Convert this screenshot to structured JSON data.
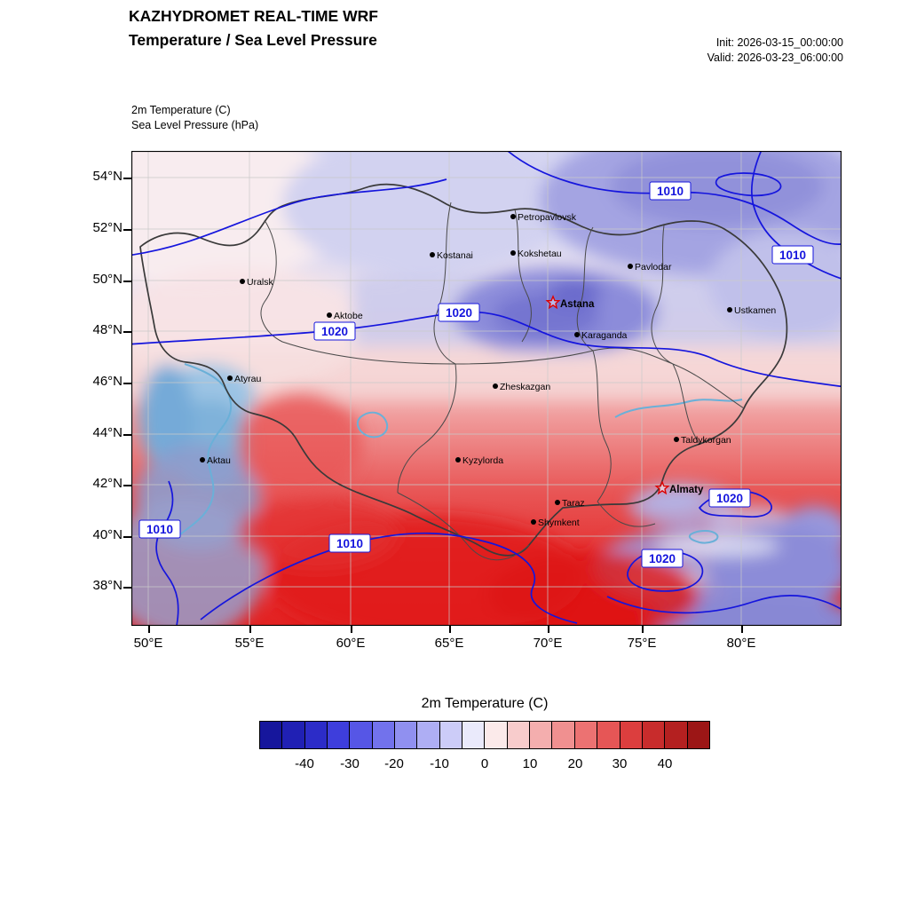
{
  "header": {
    "title_line1": "KAZHYDROMET REAL-TIME WRF",
    "title_line2": "Temperature / Sea Level Pressure",
    "init": "Init: 2026-03-15_00:00:00",
    "valid": "Valid: 2026-03-23_06:00:00"
  },
  "legend": {
    "field1": "2m Temperature   (C)",
    "field2": "Sea Level Pressure   (hPa)"
  },
  "map": {
    "lat_ticks": [
      "54°N",
      "52°N",
      "50°N",
      "48°N",
      "46°N",
      "44°N",
      "42°N",
      "40°N",
      "38°N"
    ],
    "lon_ticks": [
      "50°E",
      "55°E",
      "60°E",
      "65°E",
      "70°E",
      "75°E",
      "80°E"
    ],
    "cities": [
      {
        "name": "Petropavlovsk",
        "capital": false
      },
      {
        "name": "Kostanai",
        "capital": false
      },
      {
        "name": "Kokshetau",
        "capital": false
      },
      {
        "name": "Pavlodar",
        "capital": false
      },
      {
        "name": "Uralsk",
        "capital": false
      },
      {
        "name": "Aktobe",
        "capital": false
      },
      {
        "name": "Astana",
        "capital": true
      },
      {
        "name": "Ustkamen",
        "capital": false
      },
      {
        "name": "Karaganda",
        "capital": false
      },
      {
        "name": "Atyrau",
        "capital": false
      },
      {
        "name": "Zheskazgan",
        "capital": false
      },
      {
        "name": "Aktau",
        "capital": false
      },
      {
        "name": "Taldykorgan",
        "capital": false
      },
      {
        "name": "Kyzylorda",
        "capital": false
      },
      {
        "name": "Almaty",
        "capital": true
      },
      {
        "name": "Taraz",
        "capital": false
      },
      {
        "name": "Shymkent",
        "capital": false
      }
    ],
    "pressure_labels": [
      {
        "text": "1010"
      },
      {
        "text": "1010"
      },
      {
        "text": "1020"
      },
      {
        "text": "1020"
      },
      {
        "text": "1010"
      },
      {
        "text": "1010"
      },
      {
        "text": "1020"
      },
      {
        "text": "1020"
      }
    ]
  },
  "colorbar": {
    "title": "2m Temperature  (C)",
    "ticks": [
      "-40",
      "-30",
      "-20",
      "-10",
      "0",
      "10",
      "20",
      "30",
      "40"
    ],
    "range": [
      -50,
      50
    ],
    "colors": [
      "#16169c",
      "#2020b4",
      "#2c2cc8",
      "#3e3edc",
      "#5656e6",
      "#7272ec",
      "#9090f0",
      "#aeaef4",
      "#ccccf8",
      "#eaeafb",
      "#fbeaea",
      "#f8cccc",
      "#f4aeae",
      "#f09090",
      "#ec7272",
      "#e65656",
      "#dc3e3e",
      "#c82c2c",
      "#b42020",
      "#9c1616"
    ]
  },
  "colors": {
    "contour": "#1515dd",
    "border": "#3a3a3a",
    "capital_star": "#dd0000",
    "water_outline": "#6ab0d8"
  }
}
